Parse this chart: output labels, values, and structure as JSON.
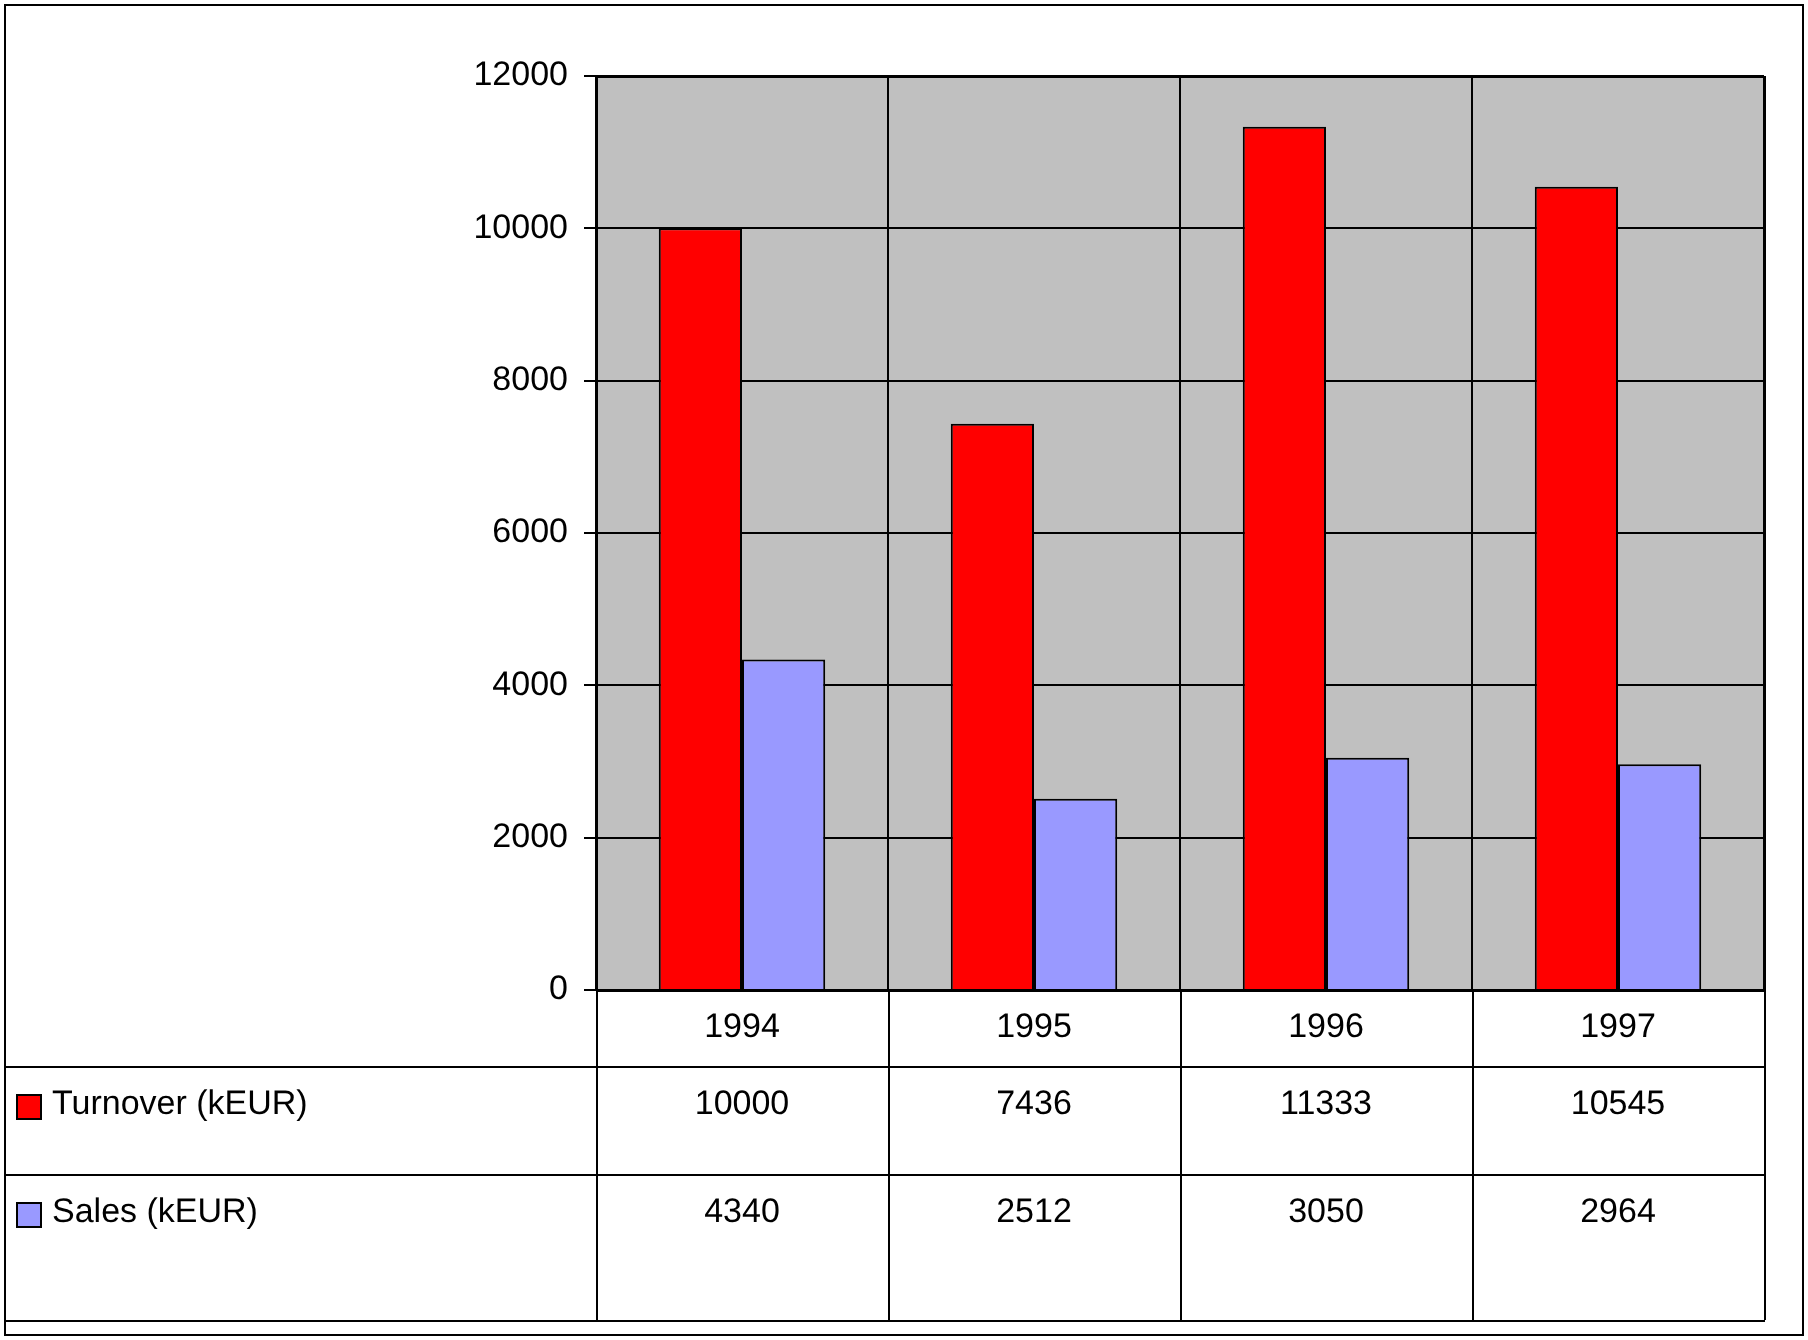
{
  "chart_data": {
    "type": "bar",
    "categories": [
      "1994",
      "1995",
      "1996",
      "1997"
    ],
    "series": [
      {
        "name": "Turnover (kEUR)",
        "color": "#ff0000",
        "values": [
          10000,
          7436,
          11333,
          10545
        ]
      },
      {
        "name": "Sales (kEUR)",
        "color": "#9999ff",
        "values": [
          4340,
          2512,
          3050,
          2964
        ]
      }
    ],
    "ylim": [
      0,
      12000
    ],
    "yticks": [
      0,
      2000,
      4000,
      6000,
      8000,
      10000,
      12000
    ],
    "grid": true,
    "legend": "bottom",
    "data_labels": true
  }
}
